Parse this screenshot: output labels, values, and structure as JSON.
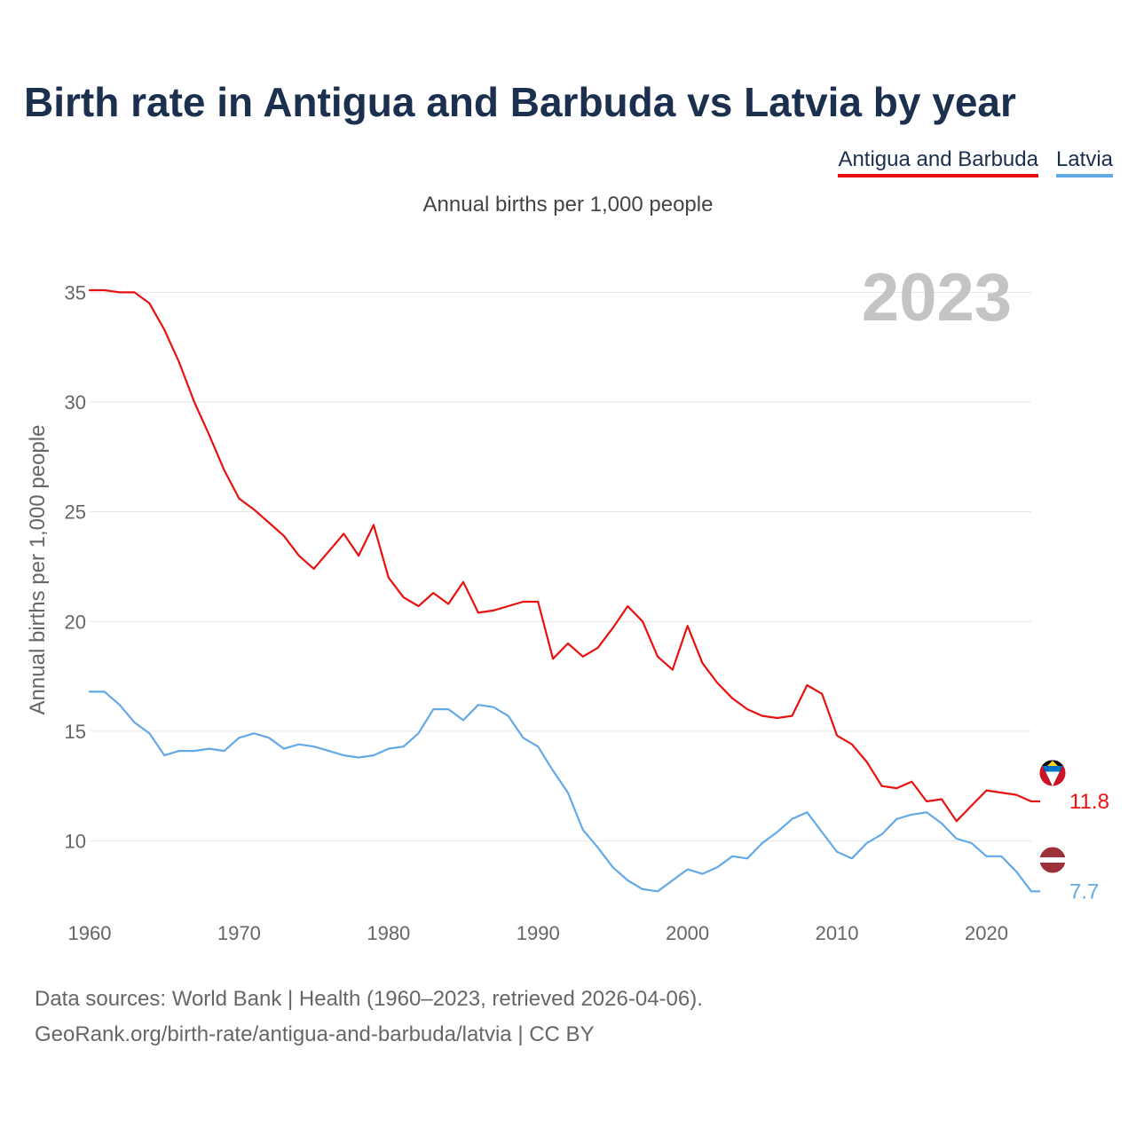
{
  "title": "Birth rate in Antigua and Barbuda vs Latvia by year",
  "subtitle": "Annual births per 1,000 people",
  "legend": [
    {
      "label": "Antigua and Barbuda",
      "color": "#e8110f"
    },
    {
      "label": "Latvia",
      "color": "#63a9e6"
    }
  ],
  "year_watermark": "2023",
  "footer": {
    "line1": "Data sources: World Bank | Health (1960–2023, retrieved 2026-04-06).",
    "line2": "GeoRank.org/birth-rate/antigua-and-barbuda/latvia | CC BY"
  },
  "chart_data": {
    "type": "line",
    "title": "Birth rate in Antigua and Barbuda vs Latvia by year",
    "xlabel": "",
    "ylabel": "Annual births per 1,000 people",
    "xlim": [
      1960,
      2023
    ],
    "ylim": [
      6.5,
      37
    ],
    "x_ticks": [
      1960,
      1970,
      1980,
      1990,
      2000,
      2010,
      2020
    ],
    "y_ticks": [
      10,
      15,
      20,
      25,
      30,
      35
    ],
    "grid": true,
    "x": [
      1960,
      1961,
      1962,
      1963,
      1964,
      1965,
      1966,
      1967,
      1968,
      1969,
      1970,
      1971,
      1972,
      1973,
      1974,
      1975,
      1976,
      1977,
      1978,
      1979,
      1980,
      1981,
      1982,
      1983,
      1984,
      1985,
      1986,
      1987,
      1988,
      1989,
      1990,
      1991,
      1992,
      1993,
      1994,
      1995,
      1996,
      1997,
      1998,
      1999,
      2000,
      2001,
      2002,
      2003,
      2004,
      2005,
      2006,
      2007,
      2008,
      2009,
      2010,
      2011,
      2012,
      2013,
      2014,
      2015,
      2016,
      2017,
      2018,
      2019,
      2020,
      2021,
      2022,
      2023
    ],
    "series": [
      {
        "name": "Antigua and Barbuda",
        "color": "#e8110f",
        "end_label": "11.8",
        "values": [
          35.1,
          35.1,
          35.0,
          35.0,
          34.5,
          33.3,
          31.8,
          30.0,
          28.5,
          26.9,
          25.6,
          25.1,
          24.5,
          23.9,
          23.0,
          22.4,
          23.2,
          24.0,
          23.0,
          24.4,
          22.0,
          21.1,
          20.7,
          21.3,
          20.8,
          21.8,
          20.4,
          20.5,
          20.7,
          20.9,
          20.9,
          18.3,
          19.0,
          18.4,
          18.8,
          19.7,
          20.7,
          20.0,
          18.4,
          17.8,
          19.8,
          18.1,
          17.2,
          16.5,
          16.0,
          15.7,
          15.6,
          15.7,
          17.1,
          16.7,
          14.8,
          14.4,
          13.6,
          12.5,
          12.4,
          12.7,
          11.8,
          11.9,
          10.9,
          11.6,
          12.3,
          12.2,
          12.1,
          11.8
        ]
      },
      {
        "name": "Latvia",
        "color": "#63a9e6",
        "end_label": "7.7",
        "values": [
          16.8,
          16.8,
          16.2,
          15.4,
          14.9,
          13.9,
          14.1,
          14.1,
          14.2,
          14.1,
          14.7,
          14.9,
          14.7,
          14.2,
          14.4,
          14.3,
          14.1,
          13.9,
          13.8,
          13.9,
          14.2,
          14.3,
          14.9,
          16.0,
          16.0,
          15.5,
          16.2,
          16.1,
          15.7,
          14.7,
          14.3,
          13.2,
          12.2,
          10.5,
          9.7,
          8.8,
          8.2,
          7.8,
          7.7,
          8.2,
          8.7,
          8.5,
          8.8,
          9.3,
          9.2,
          9.9,
          10.4,
          11.0,
          11.3,
          10.4,
          9.5,
          9.2,
          9.9,
          10.3,
          11.0,
          11.2,
          11.3,
          10.8,
          10.1,
          9.9,
          9.3,
          9.3,
          8.6,
          7.7
        ]
      }
    ]
  }
}
